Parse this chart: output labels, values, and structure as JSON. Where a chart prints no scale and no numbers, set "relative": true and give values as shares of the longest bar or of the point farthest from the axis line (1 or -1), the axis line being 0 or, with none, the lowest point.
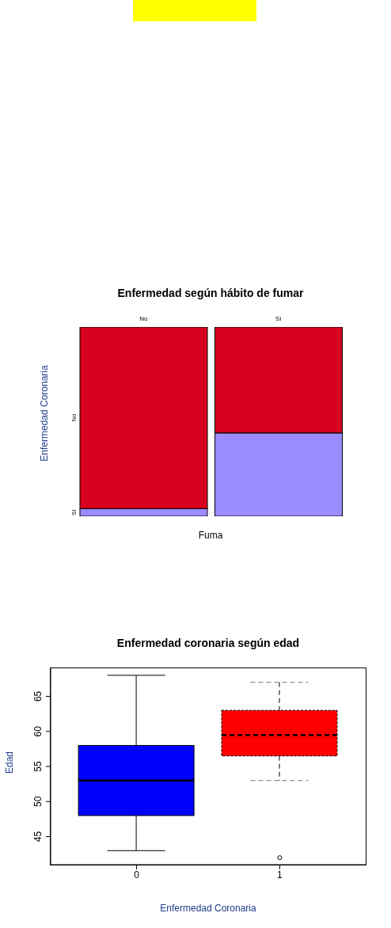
{
  "chart_data": [
    {
      "type": "bar",
      "title": "Enfermedad según hábito de fumar",
      "xlabel": "Fuma",
      "ylabel": "Enfermedad Coronaria",
      "categories": [
        "No",
        "Sí"
      ],
      "stacked": true,
      "relative": true,
      "series": [
        {
          "name": "Sí",
          "color": "#9b8cff",
          "values": [
            0.04,
            0.44
          ]
        },
        {
          "name": "No",
          "color": "#d7001f",
          "values": [
            0.96,
            0.56
          ]
        }
      ]
    },
    {
      "type": "box",
      "title": "Enfermedad coronaria según edad",
      "xlabel": "Enfermedad Coronaria",
      "ylabel": "Edad",
      "categories": [
        "0",
        "1"
      ],
      "ylim": [
        41,
        69
      ],
      "yticks": [
        45,
        50,
        55,
        60,
        65
      ],
      "series": [
        {
          "color": "#0000ff",
          "line_style": "solid",
          "boxes": [
            {
              "low": 43,
              "q1": 48,
              "median": 53,
              "q3": 58,
              "high": 68
            },
            null
          ]
        },
        {
          "color": "#ff0000",
          "line_style": "dashed",
          "boxes": [
            null,
            {
              "low": 53,
              "q1": 56.5,
              "median": 59.5,
              "q3": 63,
              "high": 67,
              "outliers": [
                42
              ]
            }
          ]
        }
      ]
    }
  ]
}
